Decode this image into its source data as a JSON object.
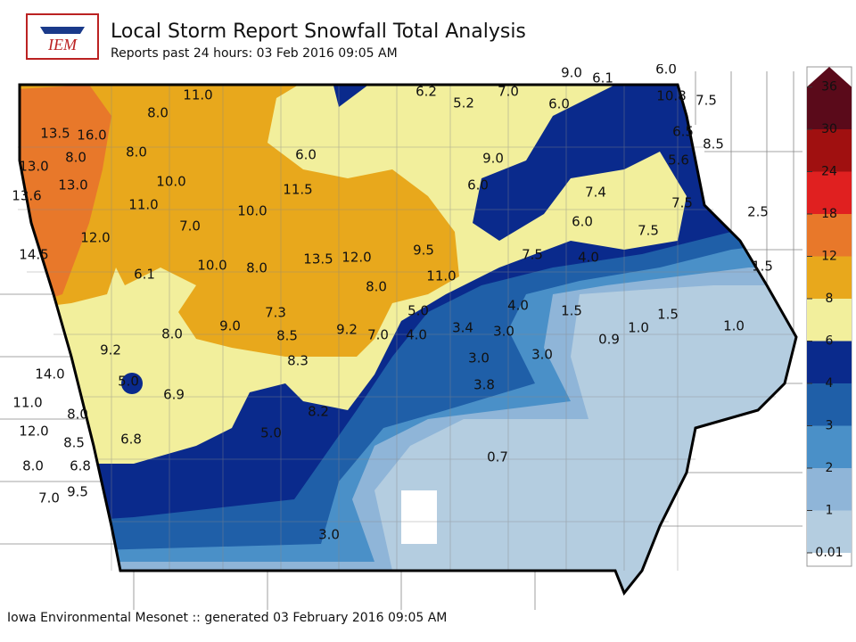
{
  "header": {
    "logo": "IEM",
    "title": "Local Storm Report Snowfall Total Analysis",
    "subtitle": "Reports past 24 hours: 03 Feb 2016 09:05 AM"
  },
  "footer": "Iowa Environmental Mesonet :: generated 03 February 2016 09:05 AM",
  "legend": {
    "ticks": [
      0.01,
      1,
      2,
      3,
      4,
      6,
      8,
      12,
      18,
      24,
      30,
      36
    ],
    "colors": [
      "#b4cde0",
      "#8fb5d8",
      "#4a90c8",
      "#1f5fa8",
      "#0a2a8c",
      "#f2ef9c",
      "#e8a81c",
      "#e8782a",
      "#e02020",
      "#a01010",
      "#5a0a1a"
    ]
  },
  "reports": [
    "11.0",
    "8.0",
    "13.5",
    "16.0",
    "8.0",
    "8.0",
    "13.0",
    "13.0",
    "13.6",
    "10.0",
    "11.0",
    "7.0",
    "10.0",
    "12.0",
    "14.5",
    "6.1",
    "10.0",
    "8.0",
    "13.5",
    "12.0",
    "8.0",
    "9.5",
    "11.0",
    "6.0",
    "11.5",
    "6.2",
    "5.2",
    "7.0",
    "6.0",
    "9.0",
    "6.1",
    "6.0",
    "10.8",
    "7.5",
    "6.5",
    "8.5",
    "5.6",
    "9.0",
    "6.0",
    "7.4",
    "7.5",
    "2.5",
    "6.0",
    "7.5",
    "7.5",
    "4.0",
    "1.5",
    "4.0",
    "1.5",
    "1.5",
    "1.0",
    "1.0",
    "0.9",
    "5.0",
    "3.4",
    "3.0",
    "4.0",
    "7.0",
    "9.2",
    "7.3",
    "8.5",
    "9.0",
    "8.0",
    "9.2",
    "8.3",
    "3.0",
    "3.0",
    "3.8",
    "5.0",
    "6.9",
    "14.0",
    "11.0",
    "8.0",
    "8.2",
    "5.0",
    "12.0",
    "8.5",
    "6.8",
    "8.0",
    "6.8",
    "9.5",
    "7.0",
    "0.7",
    "3.0"
  ]
}
